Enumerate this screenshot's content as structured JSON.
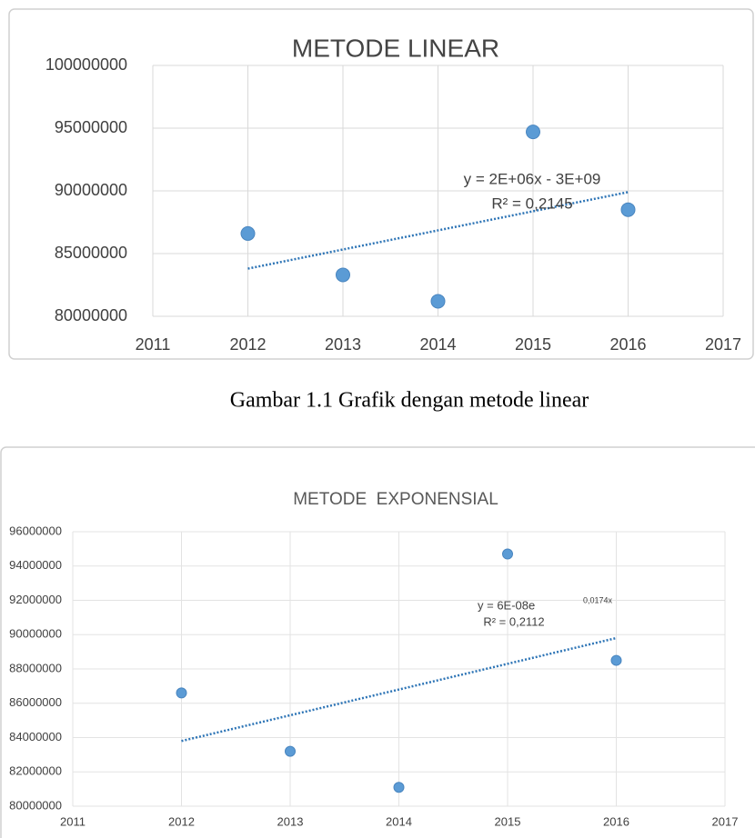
{
  "chart_data": [
    {
      "type": "scatter",
      "title": "METODE LINEAR",
      "x": [
        2012,
        2013,
        2014,
        2015,
        2016
      ],
      "values": [
        86600000,
        83300000,
        81200000,
        94700000,
        88500000
      ],
      "color": "#5b9bd5",
      "xlim": [
        2011,
        2017
      ],
      "xticks": [
        2011,
        2012,
        2013,
        2014,
        2015,
        2016,
        2017
      ],
      "ylim": [
        80000000,
        100000000
      ],
      "yticks": [
        80000000,
        85000000,
        90000000,
        95000000,
        100000000
      ],
      "grid": true,
      "trendline": {
        "x": [
          2012,
          2016
        ],
        "values": [
          83800000,
          89900000
        ],
        "color": "#2e75b6"
      },
      "annotations": [
        "y = 2E+06x - 3E+09",
        "R² = 0,2145"
      ]
    },
    {
      "type": "scatter",
      "title": "METODE  EXPONENSIAL",
      "x": [
        2012,
        2013,
        2014,
        2015,
        2016
      ],
      "values": [
        86600000,
        83200000,
        81100000,
        94700000,
        88500000
      ],
      "color": "#5b9bd5",
      "xlim": [
        2011,
        2017
      ],
      "xticks": [
        2011,
        2012,
        2013,
        2014,
        2015,
        2016,
        2017
      ],
      "ylim": [
        80000000,
        96000000
      ],
      "yticks": [
        80000000,
        82000000,
        84000000,
        86000000,
        88000000,
        90000000,
        92000000,
        94000000,
        96000000
      ],
      "grid": true,
      "trendline": {
        "x": [
          2012,
          2016
        ],
        "values": [
          83800000,
          89800000
        ],
        "color": "#2e75b6"
      },
      "annotations": [
        "y = 6E-08e",
        "0,0174x",
        "R² = 0,2112"
      ]
    }
  ],
  "caption": "Gambar 1.1 Grafik dengan metode linear"
}
